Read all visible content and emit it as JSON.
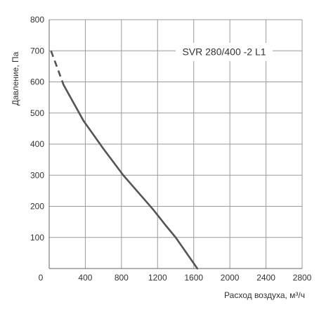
{
  "chart_data": {
    "type": "line",
    "title": "",
    "xlabel": "Расход воздуха, м³/ч",
    "ylabel": "Давление, Па",
    "xlim": [
      0,
      2800
    ],
    "ylim": [
      0,
      800
    ],
    "xticks": [
      "0",
      "400",
      "800",
      "1200",
      "1600",
      "2000",
      "2400",
      "2800"
    ],
    "yticks": [
      "100",
      "200",
      "300",
      "400",
      "500",
      "600",
      "700",
      "800"
    ],
    "grid": true,
    "annotation": "SVR 280/400 -2 L1",
    "series": [
      {
        "dashed_segment": {
          "x": [
            20,
            160
          ],
          "y": [
            700,
            590
          ]
        },
        "x": [
          160,
          380,
          600,
          820,
          1000,
          1150,
          1300,
          1400,
          1520,
          1640
        ],
        "y": [
          590,
          475,
          385,
          300,
          240,
          190,
          135,
          100,
          50,
          0
        ]
      }
    ],
    "colors": {
      "curve": "#555555",
      "grid": "#9a9a9a",
      "axis": "#666666"
    }
  }
}
